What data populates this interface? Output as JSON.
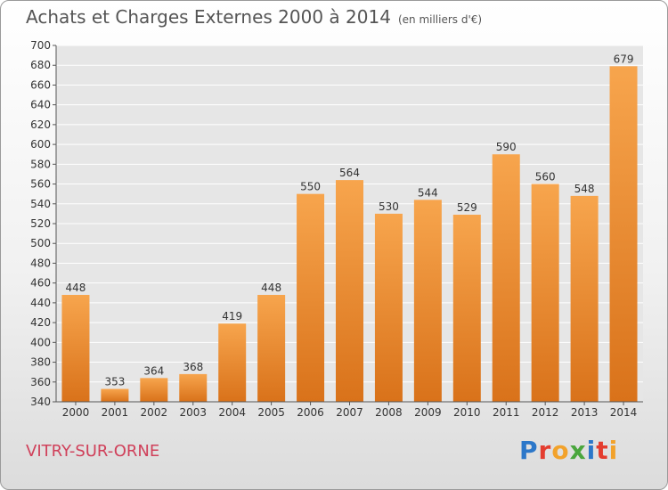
{
  "title": "Achats et Charges Externes 2000 à 2014",
  "subtitle": "(en milliers d'€)",
  "city": "VITRY-SUR-ORNE",
  "logo": [
    "P",
    "r",
    "o",
    "x",
    "i",
    "t",
    "i"
  ],
  "colors": {
    "bar_light": "#f7a54d",
    "bar_dark": "#d9721a",
    "grid": "#ffffff",
    "axis": "#555555",
    "city": "#d0405a"
  },
  "chart_data": {
    "type": "bar",
    "title": "Achats et Charges Externes 2000 à 2014",
    "subtitle": "(en milliers d'€)",
    "categories": [
      "2000",
      "2001",
      "2002",
      "2003",
      "2004",
      "2005",
      "2006",
      "2007",
      "2008",
      "2009",
      "2010",
      "2011",
      "2012",
      "2013",
      "2014"
    ],
    "values": [
      448,
      353,
      364,
      368,
      419,
      448,
      550,
      564,
      530,
      544,
      529,
      590,
      560,
      548,
      679
    ],
    "ylim": [
      340,
      700
    ],
    "ytick_step": 20,
    "grid": true
  }
}
